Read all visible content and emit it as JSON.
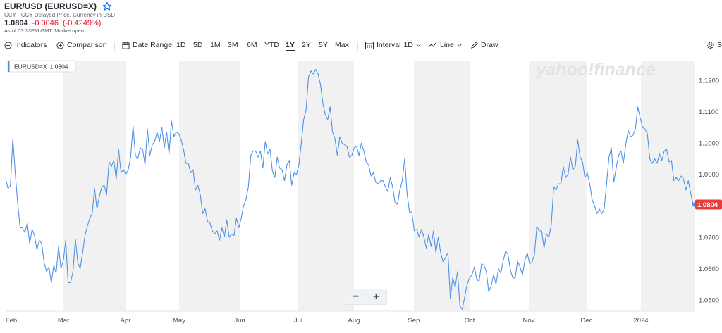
{
  "header": {
    "title": "EUR/USD (EURUSD=X)",
    "subtitle": "CCY - CCY Delayed Price. Currency in USD",
    "price": "1.0804",
    "change": "-0.0046",
    "change_pct": "(-0.4249%)",
    "as_of": "As of 03:33PM GMT. Market open."
  },
  "toolbar": {
    "indicators": "Indicators",
    "comparison": "Comparison",
    "date_range": "Date Range",
    "ranges": [
      "1D",
      "5D",
      "1M",
      "3M",
      "6M",
      "YTD",
      "1Y",
      "2Y",
      "5Y",
      "Max"
    ],
    "active_range": "1Y",
    "interval_label": "Interval",
    "interval_value": "1D",
    "line": "Line",
    "draw": "Draw",
    "settings_partial": "Se"
  },
  "legend_tag": {
    "symbol": "EURUSD=X",
    "value": "1.0804"
  },
  "watermark": "yahoo!finance",
  "zoom": {
    "minus": "−",
    "plus": "+"
  },
  "colors": {
    "line": "#4a8ee8",
    "band": "#f1f1f1",
    "last_badge": "#eb3b3b",
    "negative": "#eb0f29"
  },
  "chart_data": {
    "type": "line",
    "series": [
      {
        "name": "EURUSD=X",
        "values": [
          1.0885,
          1.0855,
          1.0865,
          1.1015,
          1.0905,
          1.081,
          1.073,
          1.073,
          1.0715,
          1.0745,
          1.068,
          1.0725,
          1.0705,
          1.066,
          1.069,
          1.068,
          1.062,
          1.059,
          1.0605,
          1.0555,
          1.061,
          1.0585,
          1.067,
          1.06,
          1.0625,
          1.069,
          1.0555,
          1.0555,
          1.059,
          1.0695,
          1.062,
          1.06,
          1.065,
          1.0705,
          1.0735,
          1.076,
          1.0775,
          1.0855,
          1.079,
          1.083,
          1.086,
          1.0865,
          1.0835,
          1.094,
          1.0925,
          1.0945,
          1.0885,
          1.098,
          1.0905,
          1.0915,
          1.09,
          1.0915,
          1.0955,
          1.1055,
          1.096,
          1.095,
          1.0985,
          1.098,
          1.093,
          1.1045,
          1.096,
          1.0995,
          1.1005,
          1.1035,
          1.1005,
          1.105,
          1.0985,
          1.1035,
          1.0965,
          1.107,
          1.102,
          1.1035,
          1.103,
          1.101,
          1.098,
          1.0935,
          1.0935,
          1.0905,
          1.0915,
          1.085,
          1.0865,
          1.0835,
          1.0775,
          1.079,
          1.075,
          1.0745,
          1.072,
          1.071,
          1.072,
          1.069,
          1.073,
          1.07,
          1.0755,
          1.07,
          1.071,
          1.0705,
          1.076,
          1.073,
          1.076,
          1.08,
          1.082,
          1.086,
          1.096,
          1.0975,
          1.0975,
          1.0955,
          1.0975,
          1.092,
          1.1005,
          1.0965,
          1.098,
          1.091,
          1.089,
          1.0955,
          1.092,
          1.0915,
          1.088,
          1.093,
          1.0945,
          1.0865,
          1.0905,
          1.09,
          1.093,
          1.1,
          1.1075,
          1.1105,
          1.121,
          1.123,
          1.122,
          1.1235,
          1.122,
          1.1185,
          1.1125,
          1.109,
          1.1075,
          1.1115,
          1.1035,
          1.1015,
          1.096,
          1.102,
          1.1,
          1.0995,
          1.099,
          1.0955,
          1.096,
          1.0985,
          1.099,
          1.096,
          1.1,
          1.0975,
          1.094,
          1.093,
          1.0895,
          1.0905,
          1.0875,
          1.087,
          1.088,
          1.088,
          1.086,
          1.0845,
          1.089,
          1.086,
          1.081,
          1.0805,
          1.085,
          1.088,
          1.095,
          1.084,
          1.078,
          1.078,
          1.072,
          1.0725,
          1.07,
          1.0725,
          1.07,
          1.0665,
          1.071,
          1.067,
          1.072,
          1.065,
          1.07,
          1.065,
          1.062,
          1.0635,
          1.065,
          1.0505,
          1.057,
          1.054,
          1.059,
          1.048,
          1.047,
          1.051,
          1.055,
          1.057,
          1.058,
          1.0605,
          1.0565,
          1.056,
          1.0615,
          1.061,
          1.059,
          1.0525,
          1.0545,
          1.058,
          1.055,
          1.06,
          1.0585,
          1.0625,
          1.0655,
          1.0645,
          1.0595,
          1.057,
          1.057,
          1.0625,
          1.0605,
          1.058,
          1.0625,
          1.065,
          1.0615,
          1.062,
          1.0645,
          1.0735,
          1.072,
          1.072,
          1.0665,
          1.071,
          1.07,
          1.074,
          1.086,
          1.085,
          1.087,
          1.087,
          1.0925,
          1.089,
          1.09,
          1.0955,
          1.0915,
          1.0925,
          1.101,
          1.0955,
          1.094,
          1.089,
          1.0905,
          1.087,
          1.082,
          1.08,
          1.0775,
          1.079,
          1.0775,
          1.079,
          1.087,
          1.0955,
          1.0985,
          1.0875,
          1.092,
          1.096,
          1.0975,
          1.0935,
          1.0995,
          1.104,
          1.102,
          1.1025,
          1.1045,
          1.1115,
          1.108,
          1.105,
          1.1045,
          1.103,
          1.095,
          1.0935,
          1.095,
          1.0935,
          1.0965,
          1.0945,
          1.0975,
          1.098,
          1.094,
          1.0945,
          1.088,
          1.089,
          1.088,
          1.0895,
          1.0885,
          1.085,
          1.088,
          1.084,
          1.0804
        ]
      }
    ],
    "x_tick_labels": [
      "Feb",
      "Mar",
      "Apr",
      "May",
      "Jun",
      "Jul",
      "Aug",
      "Sep",
      "Oct",
      "Nov",
      "Dec",
      "2024"
    ],
    "y_tick_labels": [
      "1.1200",
      "1.1100",
      "1.1000",
      "1.0900",
      "1.0800",
      "1.0700",
      "1.0600",
      "1.0500"
    ],
    "ylim": [
      1.0464,
      1.1263
    ],
    "last_value": "1.0804",
    "shaded_months": [
      "Mar",
      "May",
      "Jul",
      "Sep",
      "Nov",
      "Jan"
    ],
    "grid": false,
    "y_axis_side": "right"
  }
}
